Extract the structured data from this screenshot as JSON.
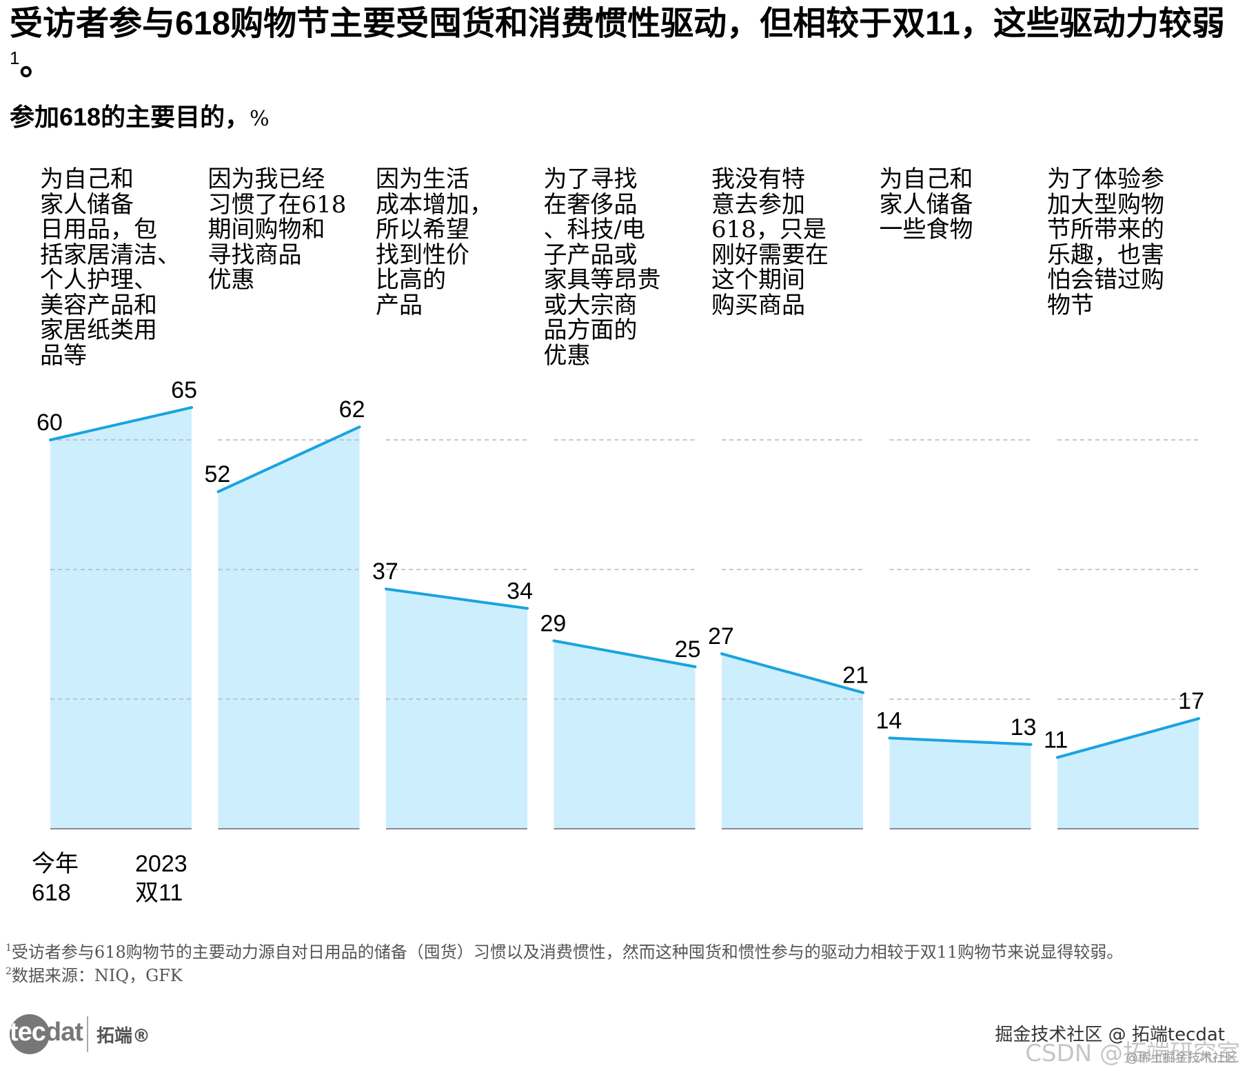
{
  "header": {
    "title": "受访者参与618购物节主要受囤货和消费惯性驱动，但相较于双11，这些驱动力较弱",
    "title_footnote_mark": "1",
    "title_end": "。",
    "subtitle": "参加618的主要目的，",
    "subtitle_unit": "%"
  },
  "chart_data": {
    "type": "area",
    "title": "参加618的主要目的，%",
    "xlabel": "",
    "ylabel": "%",
    "ylim": [
      0,
      65
    ],
    "grid": true,
    "gridlines": [
      20,
      40,
      60
    ],
    "series_labels": [
      "今年\n618",
      "2023\n双11"
    ],
    "categories": [
      "为自己和\n家人储备\n日用品，包\n括家居清洁、\n个人护理、\n美容产品和\n家居纸类用\n品等",
      "因为我已经\n习惯了在618\n期间购物和\n寻找商品\n优惠",
      "因为生活\n成本增加，\n所以希望\n找到性价\n比高的\n产品",
      "为了寻找\n在奢侈品\n、科技/电\n子产品或\n家具等昂贵\n或大宗商\n品方面的\n优惠",
      "我没有特\n意去参加\n618，只是\n刚好需要在\n这个期间\n购买商品",
      "为自己和\n家人储备\n一些食物",
      "为了体验参\n加大型购物\n节所带来的\n乐趣，也害\n怕会错过购\n物节"
    ],
    "series": [
      {
        "name": "今年618",
        "values": [
          60,
          52,
          37,
          29,
          27,
          14,
          11
        ]
      },
      {
        "name": "2023双11",
        "values": [
          65,
          62,
          34,
          25,
          21,
          13,
          17
        ]
      }
    ],
    "colors": {
      "line": "#1aa3e0",
      "fill": "#cdeefc",
      "grid": "#b5b5b5",
      "baseline": "#8a8a96"
    }
  },
  "legend": {
    "left_label": "今年\n618",
    "right_label": "2023\n双11"
  },
  "footnotes": {
    "note1_mark": "1",
    "note1": "受访者参与618购物节的主要动力源自对日用品的储备（囤货）习惯以及消费惯性，然而这种囤货和惯性参与的驱动力相较于双11购物节来说显得较弱。",
    "note2_mark": "2",
    "note2": "数据来源：NIQ，GFK"
  },
  "branding": {
    "logo_text_a": "tec",
    "logo_text_b": "dat",
    "logo_cn": "拓端®",
    "watermark_juejin": "掘金技术社区 @ 拓端tecdat",
    "watermark_csdn": "CSDN @拓端研究室",
    "watermark_small": "@稀土掘金技术社区"
  }
}
